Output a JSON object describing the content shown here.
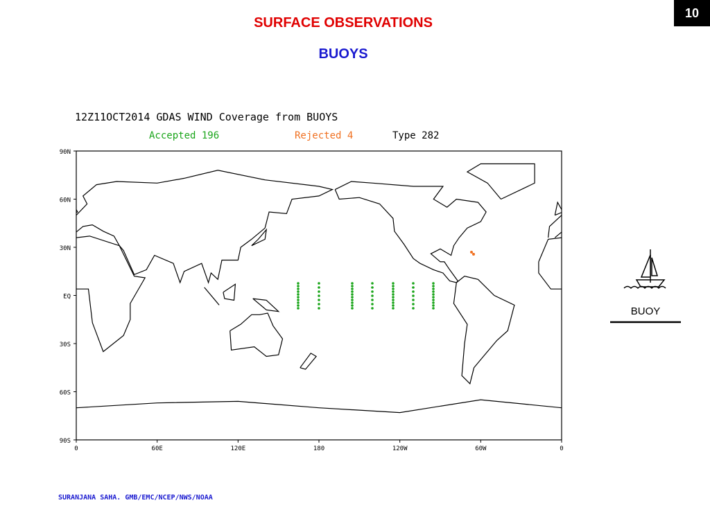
{
  "slide_number": "10",
  "title": "SURFACE OBSERVATIONS",
  "subtitle": "BUOYS",
  "map": {
    "title": "12Z11OCT2014 GDAS WIND Coverage from BUOYS",
    "accepted": "Accepted 196",
    "rejected": "Rejected 4",
    "type": "Type 282",
    "lat_labels": [
      "90N",
      "60N",
      "30N",
      "EQ",
      "30S",
      "60S",
      "90S"
    ],
    "lon_labels": [
      "0",
      "60E",
      "120E",
      "180",
      "120W",
      "60W",
      "0"
    ]
  },
  "icon_label": "BUOY",
  "footer": "SURANJANA SAHA. GMB/EMC/NCEP/NWS/NOAA"
}
